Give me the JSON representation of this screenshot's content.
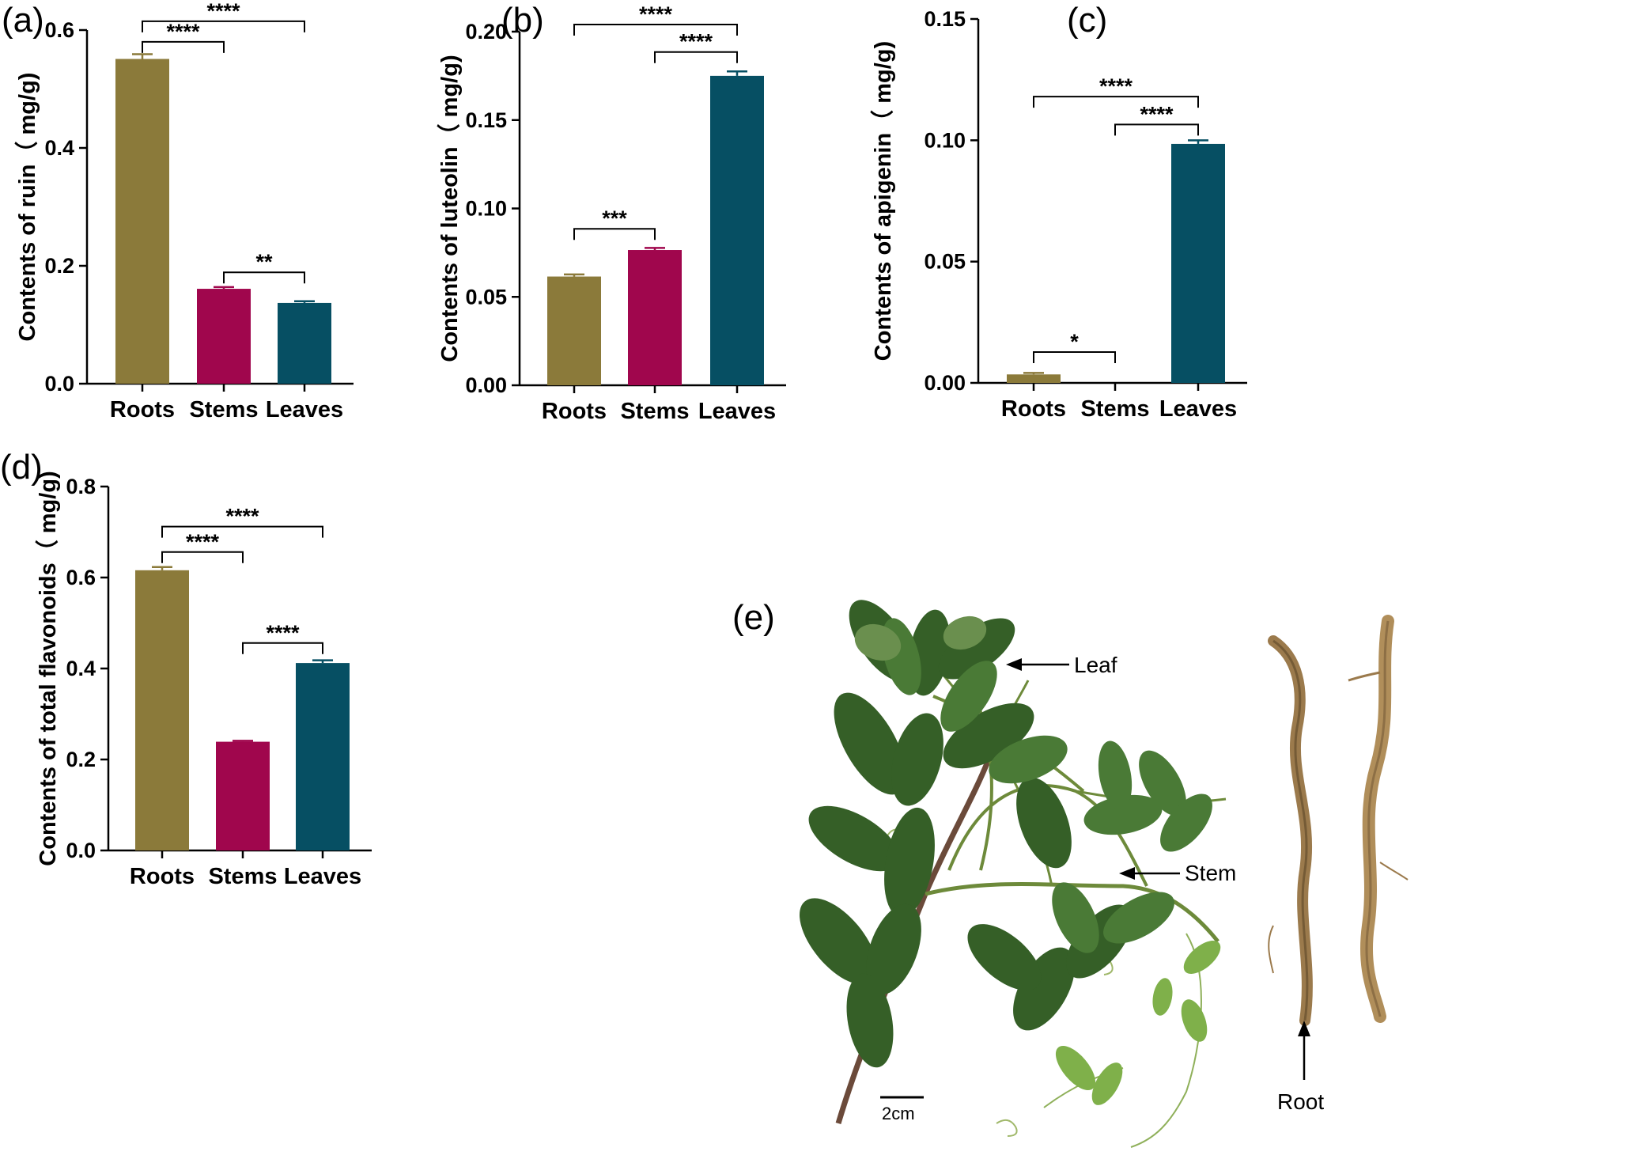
{
  "chart_data": [
    {
      "type": "bar",
      "panel": "(a)",
      "categories": [
        "Roots",
        "Stems",
        "Leaves"
      ],
      "values": [
        0.551,
        0.161,
        0.137
      ],
      "errors": [
        0.008,
        0.003,
        0.003
      ],
      "colors": [
        "#8b7a3a",
        "#a0064d",
        "#064f63"
      ],
      "ylabel": "Contents of ruin（ mg/g)",
      "ylim": [
        0,
        0.6
      ],
      "yticks": [
        0.0,
        0.2,
        0.4,
        0.6
      ],
      "tick_decimals": 1,
      "significance": [
        {
          "from": 0,
          "to": 1,
          "label": "****",
          "at": 0.58
        },
        {
          "from": 0,
          "to": 2,
          "label": "****",
          "at": 0.615
        },
        {
          "from": 1,
          "to": 2,
          "label": "**",
          "at": 0.189
        }
      ]
    },
    {
      "type": "bar",
      "panel": "(b)",
      "categories": [
        "Roots",
        "Stems",
        "Leaves"
      ],
      "values": [
        0.0615,
        0.0765,
        0.175
      ],
      "errors": [
        0.0012,
        0.0012,
        0.0025
      ],
      "colors": [
        "#8b7a3a",
        "#a0064d",
        "#064f63"
      ],
      "ylabel": "Contents of luteolin（ mg/g)",
      "ylim": [
        0,
        0.2
      ],
      "yticks": [
        0.0,
        0.05,
        0.1,
        0.15,
        0.2
      ],
      "tick_decimals": 2,
      "significance": [
        {
          "from": 0,
          "to": 1,
          "label": "***",
          "at": 0.0885
        },
        {
          "from": 1,
          "to": 2,
          "label": "****",
          "at": 0.1885
        },
        {
          "from": 0,
          "to": 2,
          "label": "****",
          "at": 0.204
        }
      ]
    },
    {
      "type": "bar",
      "panel": "(c)",
      "categories": [
        "Roots",
        "Stems",
        "Leaves"
      ],
      "values": [
        0.0035,
        0.0,
        0.0985
      ],
      "errors": [
        0.0006,
        0.0,
        0.0015
      ],
      "colors": [
        "#8b7a3a",
        "#a0064d",
        "#064f63"
      ],
      "ylabel": "Contents of apigenin（ mg/g)",
      "ylim": [
        0,
        0.15
      ],
      "yticks": [
        0.0,
        0.05,
        0.1,
        0.15
      ],
      "tick_decimals": 2,
      "significance": [
        {
          "from": 0,
          "to": 1,
          "label": "*",
          "at": 0.0127
        },
        {
          "from": 1,
          "to": 2,
          "label": "****",
          "at": 0.1065
        },
        {
          "from": 0,
          "to": 2,
          "label": "****",
          "at": 0.118
        }
      ]
    },
    {
      "type": "bar",
      "panel": "(d)",
      "categories": [
        "Roots",
        "Stems",
        "Leaves"
      ],
      "values": [
        0.616,
        0.239,
        0.412
      ],
      "errors": [
        0.007,
        0.002,
        0.006
      ],
      "colors": [
        "#8b7a3a",
        "#a0064d",
        "#064f63"
      ],
      "ylabel": "Contents of total flavonoids（ mg/g)",
      "ylim": [
        0,
        0.8
      ],
      "yticks": [
        0.0,
        0.2,
        0.4,
        0.6,
        0.8
      ],
      "tick_decimals": 1,
      "significance": [
        {
          "from": 0,
          "to": 1,
          "label": "****",
          "at": 0.656
        },
        {
          "from": 0,
          "to": 2,
          "label": "****",
          "at": 0.712
        },
        {
          "from": 1,
          "to": 2,
          "label": "****",
          "at": 0.456
        }
      ]
    }
  ],
  "photo": {
    "panel": "(e)",
    "labels": {
      "leaf": "Leaf",
      "stem": "Stem",
      "root": "Root",
      "scale": "2cm"
    },
    "colors": {
      "leaf_dark": "#2f5e24",
      "leaf_mid": "#3f7a2e",
      "leaf_light": "#6aa04a",
      "stem": "#5a4a2a",
      "root": "#9b7a4c"
    }
  }
}
